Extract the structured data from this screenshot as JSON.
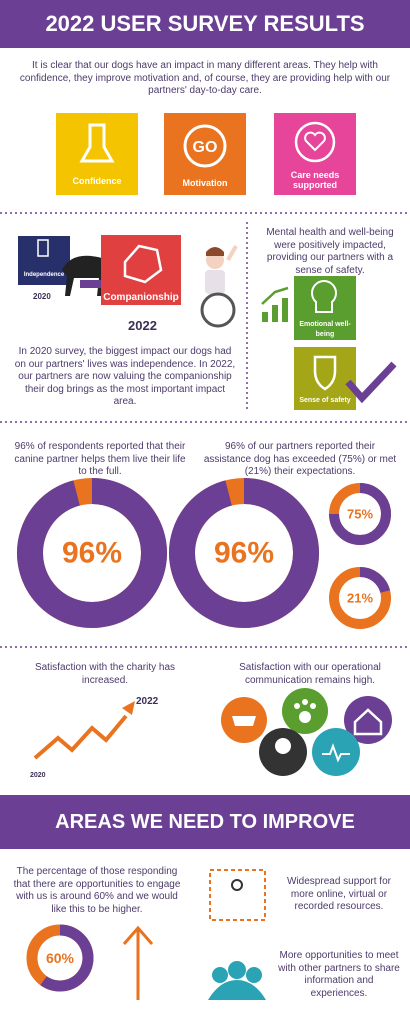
{
  "header": {
    "title": "2022 USER SURVEY RESULTS"
  },
  "intro": "It is clear that our dogs have an impact in many different areas. They help with confidence, they improve motivation and, of course, they are providing help with our partners' day-to-day care.",
  "impact_areas": [
    "Confidence",
    "Motivation",
    "Care needs supported"
  ],
  "comparison": {
    "tile_2020": "Independence",
    "year_2020": "2020",
    "tile_2022": "Companionship",
    "year_2022": "2022",
    "text": "In 2020 survey, the biggest impact our dogs had on our partners' lives was independence. In 2022, our partners are now valuing the companionship their dog brings as the most important impact area."
  },
  "wellbeing": {
    "text": "Mental health and well-being were positively impacted, providing our partners with a sense of safety.",
    "tiles": [
      "Emotional well-being",
      "Sense of safety"
    ]
  },
  "donuts_section": {
    "left_text": "96% of respondents reported that their canine partner helps them live their life to the full.",
    "right_text": "96% of our partners reported their assistance dog has exceeded (75%) or met (21%) their expectations.",
    "donuts": [
      {
        "value": 96,
        "label": "96%"
      },
      {
        "value": 96,
        "label": "96%"
      },
      {
        "value": 75,
        "label": "75%"
      },
      {
        "value": 21,
        "label": "21%"
      }
    ]
  },
  "satisfaction": {
    "charity_text": "Satisfaction with the charity has increased.",
    "year_start": "2020",
    "year_end": "2022",
    "communication_text": "Satisfaction with our operational communication remains high."
  },
  "improve": {
    "title": "AREAS WE NEED TO IMPROVE",
    "text": "The percentage of those responding that there are opportunities to engage with us is around 60% and we would like this to be higher.",
    "donut": {
      "value": 60,
      "label": "60%"
    },
    "points": [
      "Widespread support for more online, virtual or recorded resources.",
      "More opportunities to meet with other partners to share information and experiences."
    ]
  }
}
